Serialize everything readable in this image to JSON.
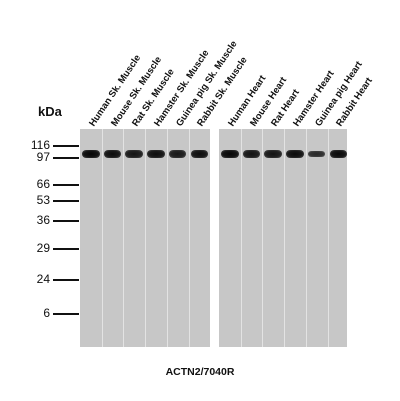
{
  "figure": {
    "unit_label": "kDa",
    "antibody": "ACTN2/7040R",
    "markers": [
      {
        "label": "116",
        "kda": 116
      },
      {
        "label": "97",
        "kda": 97
      },
      {
        "label": "66",
        "kda": 66
      },
      {
        "label": "53",
        "kda": 53
      },
      {
        "label": "36",
        "kda": 36
      },
      {
        "label": "29",
        "kda": 29
      },
      {
        "label": "24",
        "kda": 24
      },
      {
        "label": "6",
        "kda": 6
      }
    ],
    "panels": [
      {
        "lanes": [
          {
            "label": "Human Sk. Muscle",
            "band_kda": 103,
            "intensity": 1.0
          },
          {
            "label": "Mouse Sk. Muscle",
            "band_kda": 103,
            "intensity": 0.9
          },
          {
            "label": "Rat Sk. Muscle",
            "band_kda": 103,
            "intensity": 0.85
          },
          {
            "label": "Hamster Sk. Muscle",
            "band_kda": 103,
            "intensity": 0.9
          },
          {
            "label": "Guinea pig Sk. Muscle",
            "band_kda": 103,
            "intensity": 0.8
          },
          {
            "label": "Rabbit Sk. Muscle",
            "band_kda": 103,
            "intensity": 0.9
          }
        ]
      },
      {
        "lanes": [
          {
            "label": "Human Heart",
            "band_kda": 103,
            "intensity": 1.0
          },
          {
            "label": "Mouse Heart",
            "band_kda": 103,
            "intensity": 0.85
          },
          {
            "label": "Rat Heart",
            "band_kda": 103,
            "intensity": 0.85
          },
          {
            "label": "Hamster Heart",
            "band_kda": 103,
            "intensity": 0.95
          },
          {
            "label": "Guinea pig Heart",
            "band_kda": 103,
            "intensity": 0.6
          },
          {
            "label": "Rabbit Heart",
            "band_kda": 103,
            "intensity": 0.95
          }
        ]
      }
    ]
  }
}
